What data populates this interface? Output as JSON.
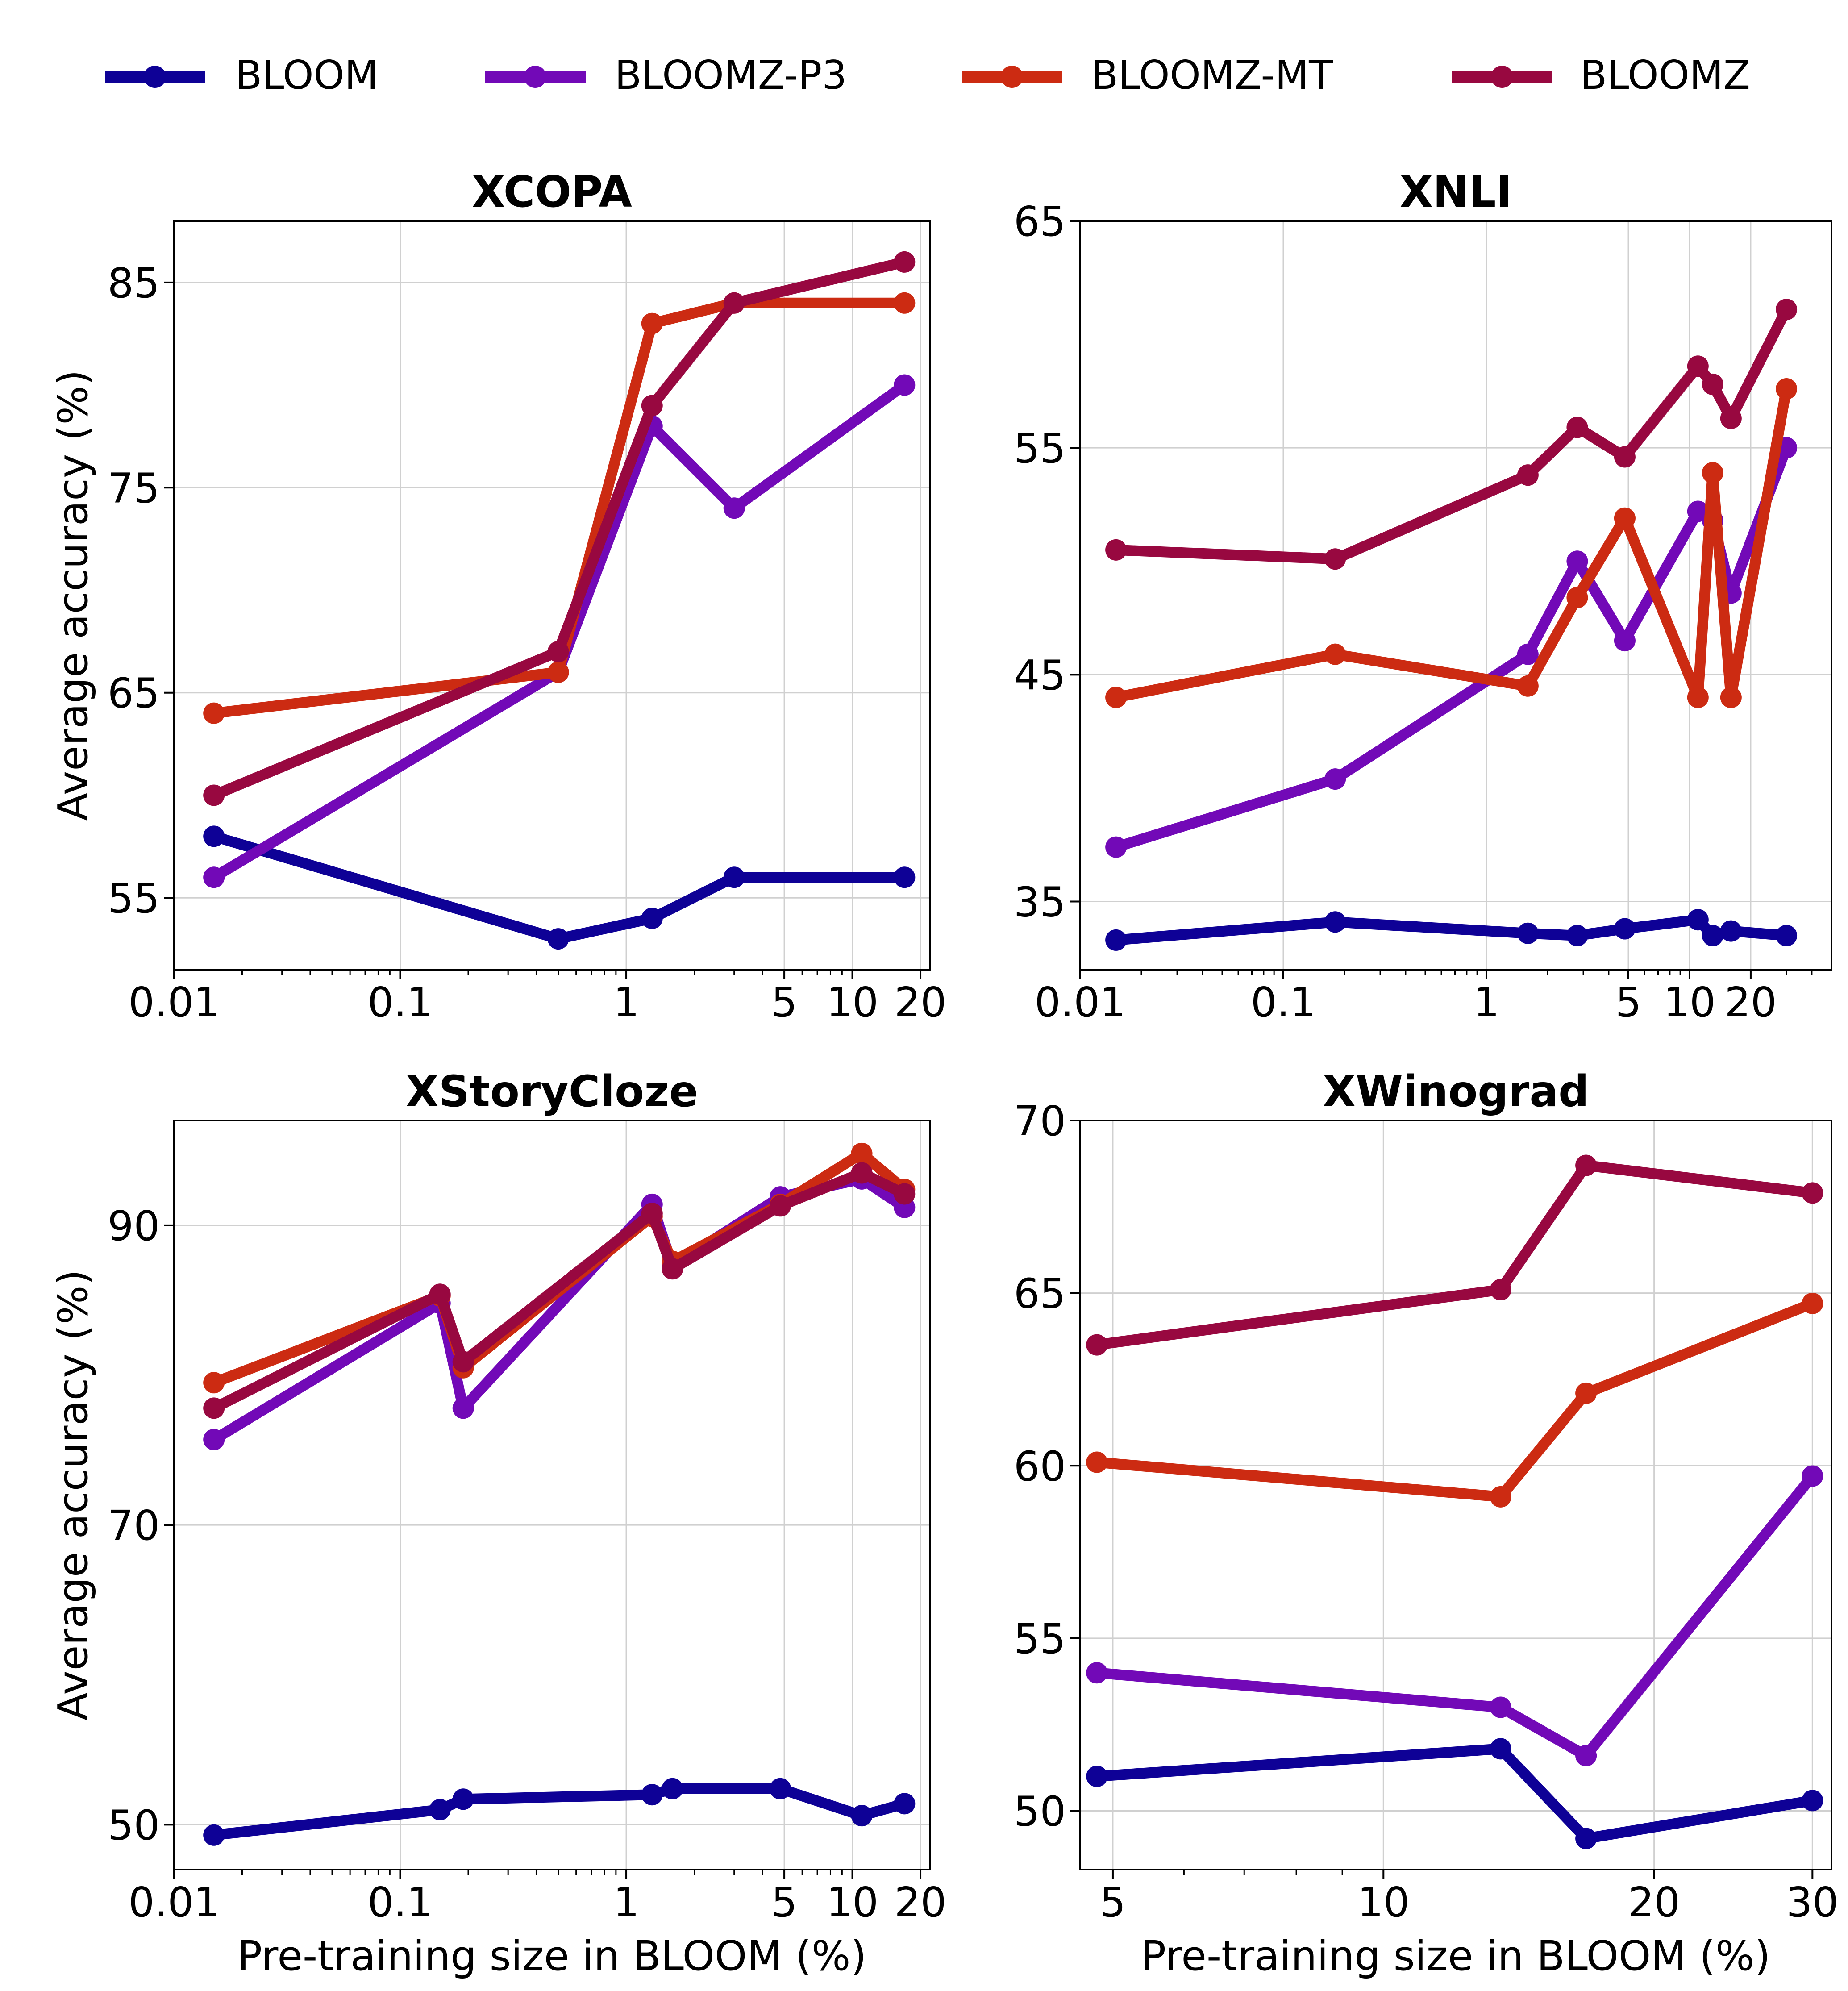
{
  "legend": {
    "placement": "top",
    "items": [
      {
        "label": "BLOOM",
        "color": "#0e0196"
      },
      {
        "label": "BLOOMZ-P3",
        "color": "#7209b7"
      },
      {
        "label": "BLOOMZ-MT",
        "color": "#cc2b12"
      },
      {
        "label": "BLOOMZ",
        "color": "#980840"
      }
    ]
  },
  "chart_data": [
    {
      "type": "line",
      "title": "XCOPA",
      "xlabel": "",
      "ylabel": "Average accuracy (%)",
      "xscale": "log",
      "xlim": [
        0.01,
        22
      ],
      "ylim": [
        51.5,
        88
      ],
      "xticks": [
        0.01,
        0.1,
        1,
        5,
        10,
        20
      ],
      "xtick_labels": [
        "0.01",
        "0.1",
        "1",
        "5",
        "10",
        "20"
      ],
      "yticks": [
        55,
        65,
        75,
        85
      ],
      "grid": true,
      "series": [
        {
          "name": "BLOOM",
          "x": [
            0.015,
            0.5,
            1.3,
            3,
            17
          ],
          "y": [
            58,
            53,
            54,
            56,
            56
          ]
        },
        {
          "name": "BLOOMZ-P3",
          "x": [
            0.015,
            0.5,
            1.3,
            3,
            17
          ],
          "y": [
            56,
            66,
            78,
            74,
            80
          ]
        },
        {
          "name": "BLOOMZ-MT",
          "x": [
            0.015,
            0.5,
            1.3,
            3,
            17
          ],
          "y": [
            64,
            66,
            83,
            84,
            84
          ]
        },
        {
          "name": "BLOOMZ",
          "x": [
            0.015,
            0.5,
            1.3,
            3,
            17
          ],
          "y": [
            60,
            67,
            79,
            84,
            86
          ]
        }
      ]
    },
    {
      "type": "line",
      "title": "XNLI",
      "xlabel": "",
      "ylabel": "",
      "xscale": "log",
      "xlim": [
        0.01,
        50
      ],
      "ylim": [
        32,
        65
      ],
      "xticks": [
        0.01,
        0.1,
        1,
        5,
        10,
        20
      ],
      "xtick_labels": [
        "0.01",
        "0.1",
        "1",
        "5",
        "10",
        "20"
      ],
      "yticks": [
        35,
        45,
        55,
        65
      ],
      "grid": true,
      "series": [
        {
          "name": "BLOOM",
          "x": [
            0.015,
            0.18,
            1.6,
            2.8,
            4.8,
            11,
            13,
            16,
            30
          ],
          "y": [
            33.3,
            34.1,
            33.6,
            33.5,
            33.8,
            34.2,
            33.5,
            33.7,
            33.5
          ]
        },
        {
          "name": "BLOOMZ-P3",
          "x": [
            0.015,
            0.18,
            1.6,
            2.8,
            4.8,
            11,
            13,
            16,
            30
          ],
          "y": [
            37.4,
            40.4,
            45.9,
            50,
            46.5,
            52.2,
            51.8,
            48.6,
            55
          ]
        },
        {
          "name": "BLOOMZ-MT",
          "x": [
            0.015,
            0.18,
            1.6,
            2.8,
            4.8,
            11,
            13,
            16,
            30
          ],
          "y": [
            44,
            45.9,
            44.5,
            48.4,
            51.9,
            44,
            53.9,
            44,
            57.6
          ]
        },
        {
          "name": "BLOOMZ",
          "x": [
            0.015,
            0.18,
            1.6,
            2.8,
            4.8,
            11,
            13,
            16,
            30
          ],
          "y": [
            50.5,
            50.1,
            53.8,
            55.9,
            54.6,
            58.6,
            57.8,
            56.3,
            61.1
          ]
        }
      ]
    },
    {
      "type": "line",
      "title": "XStoryCloze",
      "xlabel": "Pre-training size in BLOOM (%)",
      "ylabel": "Average accuracy (%)",
      "xscale": "log",
      "xlim": [
        0.01,
        22
      ],
      "ylim": [
        47,
        97
      ],
      "xticks": [
        0.01,
        0.1,
        1,
        5,
        10,
        20
      ],
      "xtick_labels": [
        "0.01",
        "0.1",
        "1",
        "5",
        "10",
        "20"
      ],
      "yticks": [
        50,
        70,
        90
      ],
      "grid": true,
      "series": [
        {
          "name": "BLOOM",
          "x": [
            0.015,
            0.15,
            0.19,
            1.3,
            1.6,
            4.8,
            11,
            17
          ],
          "y": [
            49.3,
            51,
            51.7,
            52,
            52.4,
            52.4,
            50.6,
            51.4
          ]
        },
        {
          "name": "BLOOMZ-P3",
          "x": [
            0.015,
            0.15,
            0.19,
            1.3,
            1.6,
            4.8,
            11,
            17
          ],
          "y": [
            75.7,
            84.8,
            77.8,
            91.4,
            87.3,
            91.9,
            93.1,
            91.2
          ]
        },
        {
          "name": "BLOOMZ-MT",
          "x": [
            0.015,
            0.15,
            0.19,
            1.3,
            1.6,
            4.8,
            11,
            17
          ],
          "y": [
            79.5,
            85.3,
            80.5,
            90.6,
            87.6,
            91.4,
            94.8,
            92.4
          ]
        },
        {
          "name": "BLOOMZ",
          "x": [
            0.015,
            0.15,
            0.19,
            1.3,
            1.6,
            4.8,
            11,
            17
          ],
          "y": [
            77.8,
            85.4,
            80.9,
            90.8,
            87.1,
            91.3,
            93.5,
            92.1
          ]
        }
      ]
    },
    {
      "type": "line",
      "title": "XWinograd",
      "xlabel": "Pre-training size in BLOOM (%)",
      "ylabel": "",
      "xscale": "log",
      "xlim": [
        4.6,
        31.5
      ],
      "ylim": [
        48.3,
        70
      ],
      "xticks": [
        5,
        10,
        20,
        30
      ],
      "xtick_labels": [
        "5",
        "10",
        "20",
        "30"
      ],
      "yticks": [
        50,
        55,
        60,
        65,
        70
      ],
      "grid": true,
      "series": [
        {
          "name": "BLOOM",
          "x": [
            4.8,
            13.5,
            16.8,
            30
          ],
          "y": [
            51,
            51.8,
            49.2,
            50.3
          ]
        },
        {
          "name": "BLOOMZ-P3",
          "x": [
            4.8,
            13.5,
            16.8,
            30
          ],
          "y": [
            54,
            53,
            51.6,
            59.7
          ]
        },
        {
          "name": "BLOOMZ-MT",
          "x": [
            4.8,
            13.5,
            16.8,
            30
          ],
          "y": [
            60.1,
            59.1,
            62.1,
            64.7
          ]
        },
        {
          "name": "BLOOMZ",
          "x": [
            4.8,
            13.5,
            16.8,
            30
          ],
          "y": [
            63.5,
            65.1,
            68.7,
            67.9
          ]
        }
      ]
    }
  ]
}
